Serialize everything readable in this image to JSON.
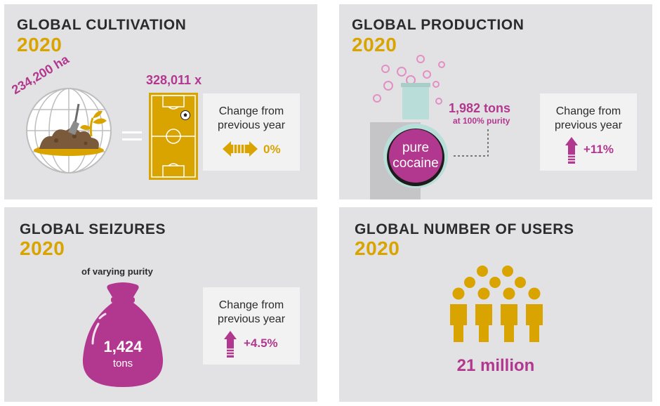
{
  "cultivation": {
    "title": "GLOBAL CULTIVATION",
    "year": "2020",
    "area": "234,200 ha",
    "fields": "328,011 x",
    "change_label_1": "Change from",
    "change_label_2": "previous year",
    "change_value": "0%"
  },
  "production": {
    "title": "GLOBAL PRODUCTION",
    "year": "2020",
    "amount": "1,982 tons",
    "purity_note": "at 100% purity",
    "flask_label_1": "pure",
    "flask_label_2": "cocaine",
    "change_label_1": "Change from",
    "change_label_2": "previous year",
    "change_value": "+11%"
  },
  "seizures": {
    "title": "GLOBAL SEIZURES",
    "year": "2020",
    "note": "of varying purity",
    "amount": "1,424",
    "unit": "tons",
    "change_label_1": "Change from",
    "change_label_2": "previous year",
    "change_value": "+4.5%"
  },
  "users": {
    "title": "GLOBAL NUMBER OF USERS",
    "year": "2020",
    "amount": "21 million"
  },
  "colors": {
    "gold": "#d9a400",
    "magenta": "#b2388f",
    "panel_bg": "#e2e2e4"
  },
  "icons": [
    "globe-with-plant-icon",
    "football-field-icon",
    "soccer-ball-icon",
    "left-right-arrow-icon",
    "flask-icon",
    "bubbles-icon",
    "up-arrow-icon",
    "money-bag-icon",
    "people-group-icon"
  ]
}
